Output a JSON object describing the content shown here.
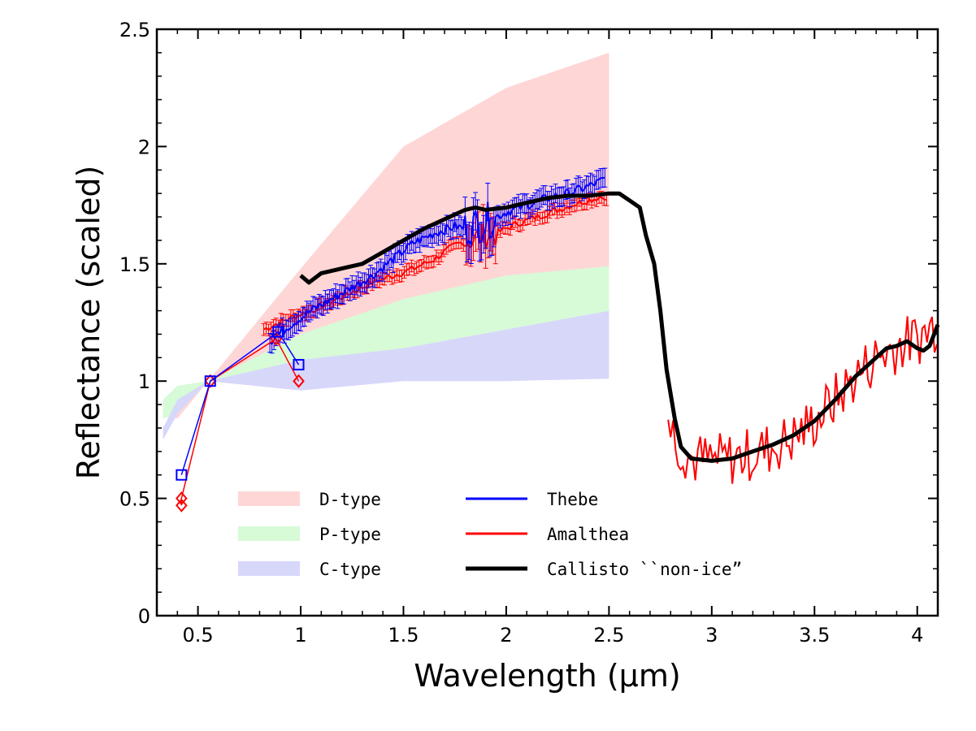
{
  "chart_data": {
    "type": "line",
    "xlabel": "Wavelength (μm)",
    "ylabel": "Reflectance (scaled)",
    "xlim": [
      0.3,
      4.1
    ],
    "ylim": [
      0,
      2.5
    ],
    "x_ticks": [
      0.5,
      1,
      1.5,
      2,
      2.5,
      3,
      3.5,
      4
    ],
    "x_tick_labels": [
      "0.5",
      "1",
      "1.5",
      "2",
      "2.5",
      "3",
      "3.5",
      "4"
    ],
    "y_ticks": [
      0,
      0.5,
      1,
      1.5,
      2,
      2.5
    ],
    "y_tick_labels": [
      "0",
      "0.5",
      "1",
      "1.5",
      "2",
      "2.5"
    ],
    "grid": false,
    "legend": {
      "placement": "bottom-center"
    },
    "bands": [
      {
        "name": "D-type",
        "color": "#ffd6d6",
        "upper": [
          [
            0.33,
            0.86
          ],
          [
            0.4,
            0.9
          ],
          [
            0.55,
            1.0
          ],
          [
            1.0,
            1.48
          ],
          [
            1.5,
            2.0
          ],
          [
            2.0,
            2.25
          ],
          [
            2.5,
            2.4
          ]
        ],
        "lower": [
          [
            0.33,
            0.86
          ],
          [
            0.4,
            0.84
          ],
          [
            0.55,
            1.0
          ],
          [
            1.0,
            1.1
          ],
          [
            1.5,
            1.28
          ],
          [
            2.0,
            1.42
          ],
          [
            2.5,
            1.49
          ]
        ]
      },
      {
        "name": "P-type",
        "color": "#d7fad7",
        "upper": [
          [
            0.33,
            0.92
          ],
          [
            0.4,
            0.98
          ],
          [
            0.55,
            1.0
          ],
          [
            1.0,
            1.2
          ],
          [
            1.5,
            1.35
          ],
          [
            2.0,
            1.45
          ],
          [
            2.5,
            1.49
          ]
        ],
        "lower": [
          [
            0.33,
            0.84
          ],
          [
            0.4,
            0.86
          ],
          [
            0.55,
            1.0
          ],
          [
            1.0,
            1.05
          ],
          [
            1.5,
            1.14
          ],
          [
            2.0,
            1.22
          ],
          [
            2.5,
            1.3
          ]
        ]
      },
      {
        "name": "C-type",
        "color": "#d7d7fa",
        "upper": [
          [
            0.33,
            0.8
          ],
          [
            0.4,
            0.92
          ],
          [
            0.55,
            1.0
          ],
          [
            1.0,
            1.09
          ],
          [
            1.5,
            1.14
          ],
          [
            2.0,
            1.22
          ],
          [
            2.5,
            1.3
          ]
        ],
        "lower": [
          [
            0.33,
            0.75
          ],
          [
            0.4,
            0.86
          ],
          [
            0.55,
            1.0
          ],
          [
            1.0,
            0.96
          ],
          [
            1.5,
            1.0
          ],
          [
            2.0,
            1.0
          ],
          [
            2.5,
            1.01
          ]
        ]
      }
    ],
    "series": [
      {
        "name": "Thebe",
        "color": "#0000ff",
        "points": [
          [
            0.42,
            0.6
          ],
          [
            0.56,
            1.0
          ],
          [
            0.89,
            1.21
          ],
          [
            0.99,
            1.07
          ]
        ],
        "spectrum_x": [
          0.85,
          2.48
        ],
        "spectrum": [
          [
            0.85,
            1.17
          ],
          [
            0.95,
            1.24
          ],
          [
            1.05,
            1.3
          ],
          [
            1.15,
            1.35
          ],
          [
            1.25,
            1.4
          ],
          [
            1.35,
            1.45
          ],
          [
            1.45,
            1.52
          ],
          [
            1.55,
            1.59
          ],
          [
            1.65,
            1.63
          ],
          [
            1.75,
            1.66
          ],
          [
            1.8,
            1.65
          ],
          [
            1.9,
            1.68
          ],
          [
            2.0,
            1.72
          ],
          [
            2.1,
            1.75
          ],
          [
            2.2,
            1.78
          ],
          [
            2.3,
            1.8
          ],
          [
            2.4,
            1.83
          ],
          [
            2.48,
            1.86
          ]
        ]
      },
      {
        "name": "Amalthea",
        "color": "#ff0000",
        "points": [
          [
            0.42,
            0.47
          ],
          [
            0.42,
            0.5
          ],
          [
            0.56,
            1.0
          ],
          [
            0.88,
            1.18
          ],
          [
            0.99,
            1.0
          ]
        ],
        "spectrum_x": [
          0.82,
          4.1
        ],
        "spectrum": [
          [
            0.82,
            1.22
          ],
          [
            0.95,
            1.27
          ],
          [
            1.05,
            1.3
          ],
          [
            1.15,
            1.34
          ],
          [
            1.25,
            1.38
          ],
          [
            1.35,
            1.42
          ],
          [
            1.45,
            1.45
          ],
          [
            1.55,
            1.48
          ],
          [
            1.65,
            1.52
          ],
          [
            1.75,
            1.58
          ],
          [
            1.85,
            1.61
          ],
          [
            1.95,
            1.63
          ],
          [
            2.05,
            1.67
          ],
          [
            2.15,
            1.7
          ],
          [
            2.25,
            1.73
          ],
          [
            2.35,
            1.76
          ],
          [
            2.48,
            1.79
          ],
          [
            2.8,
            0.8
          ],
          [
            2.85,
            0.72
          ],
          [
            2.9,
            0.67
          ],
          [
            3.0,
            0.66
          ],
          [
            3.1,
            0.67
          ],
          [
            3.2,
            0.69
          ],
          [
            3.3,
            0.72
          ],
          [
            3.4,
            0.76
          ],
          [
            3.5,
            0.83
          ],
          [
            3.6,
            0.92
          ],
          [
            3.7,
            1.02
          ],
          [
            3.8,
            1.1
          ],
          [
            3.9,
            1.15
          ],
          [
            4.0,
            1.18
          ],
          [
            4.1,
            1.25
          ]
        ]
      },
      {
        "name": "Callisto ``non-ice”",
        "color": "#000000",
        "spectrum": [
          [
            1.0,
            1.45
          ],
          [
            1.04,
            1.42
          ],
          [
            1.1,
            1.46
          ],
          [
            1.2,
            1.48
          ],
          [
            1.3,
            1.5
          ],
          [
            1.4,
            1.55
          ],
          [
            1.5,
            1.6
          ],
          [
            1.6,
            1.65
          ],
          [
            1.7,
            1.69
          ],
          [
            1.8,
            1.73
          ],
          [
            1.85,
            1.74
          ],
          [
            1.9,
            1.73
          ],
          [
            2.0,
            1.74
          ],
          [
            2.1,
            1.76
          ],
          [
            2.2,
            1.78
          ],
          [
            2.3,
            1.79
          ],
          [
            2.4,
            1.79
          ],
          [
            2.5,
            1.8
          ],
          [
            2.55,
            1.8
          ],
          [
            2.6,
            1.77
          ],
          [
            2.65,
            1.74
          ],
          [
            2.68,
            1.62
          ],
          [
            2.72,
            1.5
          ],
          [
            2.75,
            1.3
          ],
          [
            2.78,
            1.05
          ],
          [
            2.82,
            0.84
          ],
          [
            2.85,
            0.72
          ],
          [
            2.9,
            0.67
          ],
          [
            3.0,
            0.66
          ],
          [
            3.1,
            0.67
          ],
          [
            3.2,
            0.7
          ],
          [
            3.3,
            0.73
          ],
          [
            3.4,
            0.77
          ],
          [
            3.5,
            0.83
          ],
          [
            3.6,
            0.92
          ],
          [
            3.7,
            1.02
          ],
          [
            3.8,
            1.1
          ],
          [
            3.85,
            1.14
          ],
          [
            3.9,
            1.15
          ],
          [
            3.95,
            1.17
          ],
          [
            4.0,
            1.14
          ],
          [
            4.03,
            1.13
          ],
          [
            4.06,
            1.15
          ],
          [
            4.1,
            1.24
          ]
        ]
      }
    ]
  }
}
